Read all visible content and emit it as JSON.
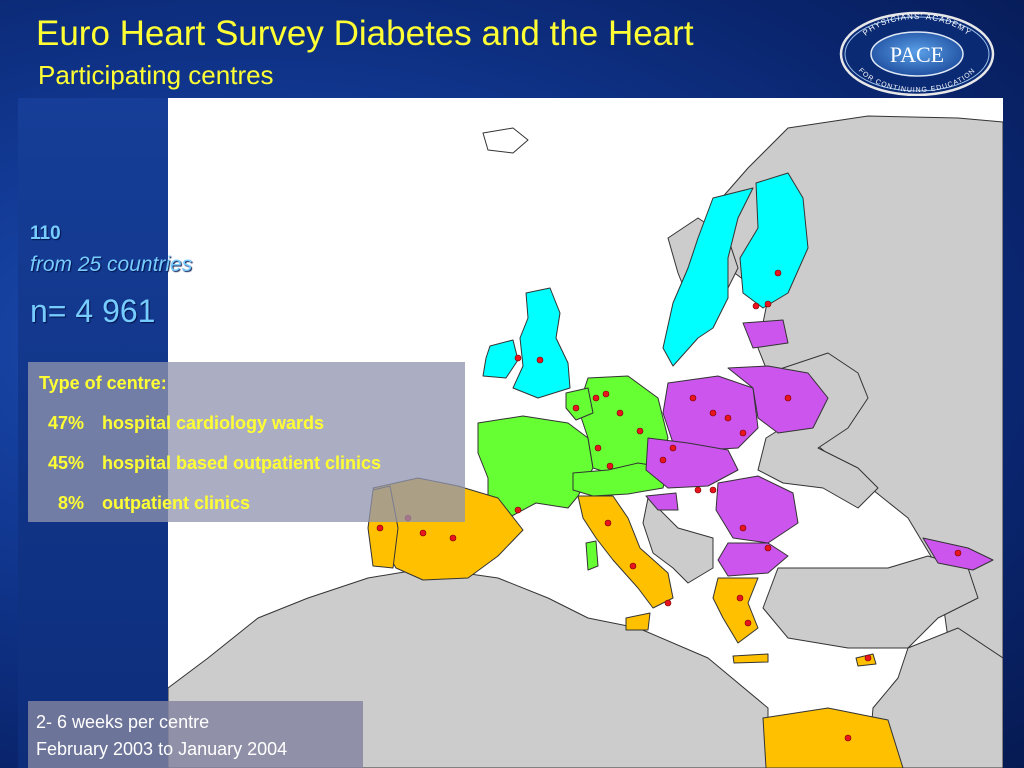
{
  "slide": {
    "title": "Euro Heart Survey Diabetes and the Heart",
    "subtitle": "Participating centres"
  },
  "logo": {
    "main_text": "PACE",
    "ring_top_text": "PHYSICIANS' ACADEMY",
    "ring_bottom_text": "FOR CONTINUING EDUCATION"
  },
  "stats": {
    "centres": "110",
    "countries": "from 25 countries",
    "n": "n= 4 961"
  },
  "centre_types": {
    "heading": "Type of centre:",
    "items": [
      {
        "pct": "47%",
        "label": "hospital cardiology wards"
      },
      {
        "pct": "45%",
        "label": "hospital based outpatient clinics"
      },
      {
        "pct": "8%",
        "label": "outpatient clinics"
      }
    ]
  },
  "period": {
    "line1": "2- 6 weeks per centre",
    "line2": "February 2003 to January 2004"
  },
  "colors": {
    "title": "#ffff33",
    "stats": "#77ccff",
    "nordic_uk": "#00ffff",
    "western_central": "#66ff33",
    "eastern": "#cc55ee",
    "southern": "#ffc000",
    "non_participating": "#cccccc",
    "centre_dot": "#e8141e"
  }
}
